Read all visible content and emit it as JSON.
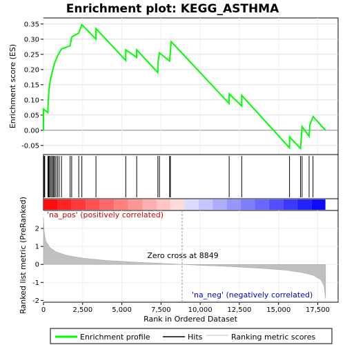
{
  "chart_data": {
    "type": "line",
    "title": "Enrichment plot: KEGG_ASTHMA",
    "top_panel": {
      "ylabel": "Enrichment score (ES)",
      "ylim": [
        -0.08,
        0.37
      ],
      "yticks": [
        -0.05,
        0.0,
        0.05,
        0.1,
        0.15,
        0.2,
        0.25,
        0.3,
        0.35
      ],
      "ytick_labels": [
        "-0.05",
        "0.00",
        "0.05",
        "0.10",
        "0.15",
        "0.20",
        "0.25",
        "0.30",
        "0.35"
      ],
      "series_name": "Enrichment profile",
      "series_color": "#00ff00",
      "points": [
        [
          0,
          0.0
        ],
        [
          0,
          0.07
        ],
        [
          280,
          0.058
        ],
        [
          300,
          0.095
        ],
        [
          350,
          0.13
        ],
        [
          420,
          0.16
        ],
        [
          550,
          0.19
        ],
        [
          700,
          0.22
        ],
        [
          900,
          0.245
        ],
        [
          1150,
          0.268
        ],
        [
          1700,
          0.278
        ],
        [
          1800,
          0.307
        ],
        [
          2250,
          0.32
        ],
        [
          2450,
          0.348
        ],
        [
          3350,
          0.3
        ],
        [
          3350,
          0.335
        ],
        [
          5250,
          0.23
        ],
        [
          5250,
          0.265
        ],
        [
          5950,
          0.24
        ],
        [
          5950,
          0.265
        ],
        [
          7300,
          0.19
        ],
        [
          7300,
          0.22
        ],
        [
          7400,
          0.255
        ],
        [
          8050,
          0.228
        ],
        [
          8100,
          0.26
        ],
        [
          8150,
          0.292
        ],
        [
          11850,
          0.088
        ],
        [
          11850,
          0.12
        ],
        [
          12650,
          0.08
        ],
        [
          12650,
          0.115
        ],
        [
          15700,
          -0.058
        ],
        [
          15700,
          -0.022
        ],
        [
          16400,
          -0.06
        ],
        [
          16450,
          -0.025
        ],
        [
          16500,
          0.012
        ],
        [
          16950,
          -0.02
        ],
        [
          17000,
          0.018
        ],
        [
          17200,
          0.045
        ],
        [
          18000,
          0.0
        ]
      ]
    },
    "hits": [
      40,
      80,
      280,
      330,
      380,
      450,
      520,
      600,
      650,
      720,
      800,
      900,
      1000,
      1150,
      1700,
      1800,
      2250,
      2450,
      3350,
      5250,
      5950,
      7300,
      7400,
      8050,
      8100,
      11850,
      12650,
      15700,
      16400,
      16500,
      16950,
      17200
    ],
    "bottom_panel": {
      "ylabel": "Ranked list metric (PreRanked)",
      "xlabel": "Rank in Ordered Dataset",
      "ylim": [
        -2.1,
        3.0
      ],
      "yticks": [
        -2,
        -1,
        0,
        1,
        2
      ],
      "ytick_labels": [
        "-2",
        "-1",
        "0",
        "1",
        "2"
      ],
      "xlim": [
        0,
        18800
      ],
      "xticks": [
        0,
        2500,
        5000,
        7500,
        10000,
        12500,
        15000,
        17500
      ],
      "xtick_labels": [
        "0",
        "2,500",
        "5,000",
        "7,500",
        "10,000",
        "12,500",
        "15,000",
        "17,500"
      ],
      "metric_curve": [
        [
          0,
          2.6
        ],
        [
          50,
          1.8
        ],
        [
          150,
          1.3
        ],
        [
          400,
          0.95
        ],
        [
          800,
          0.7
        ],
        [
          1500,
          0.5
        ],
        [
          2500,
          0.35
        ],
        [
          4000,
          0.22
        ],
        [
          6000,
          0.12
        ],
        [
          8000,
          0.04
        ],
        [
          8849,
          0.0
        ],
        [
          10000,
          -0.05
        ],
        [
          12000,
          -0.12
        ],
        [
          14000,
          -0.22
        ],
        [
          15500,
          -0.32
        ],
        [
          16500,
          -0.45
        ],
        [
          17200,
          -0.6
        ],
        [
          17700,
          -0.85
        ],
        [
          17900,
          -1.2
        ],
        [
          18000,
          -1.9
        ]
      ],
      "zero_cross": 8849,
      "annotations": {
        "pos_label": "'na_pos' (positively correlated)",
        "neg_label": "'na_neg' (negatively correlated)",
        "zero_label": "Zero cross at 8849"
      }
    },
    "legend": {
      "entries": [
        "Enrichment profile",
        "Hits",
        "Ranking metric scores"
      ]
    }
  }
}
